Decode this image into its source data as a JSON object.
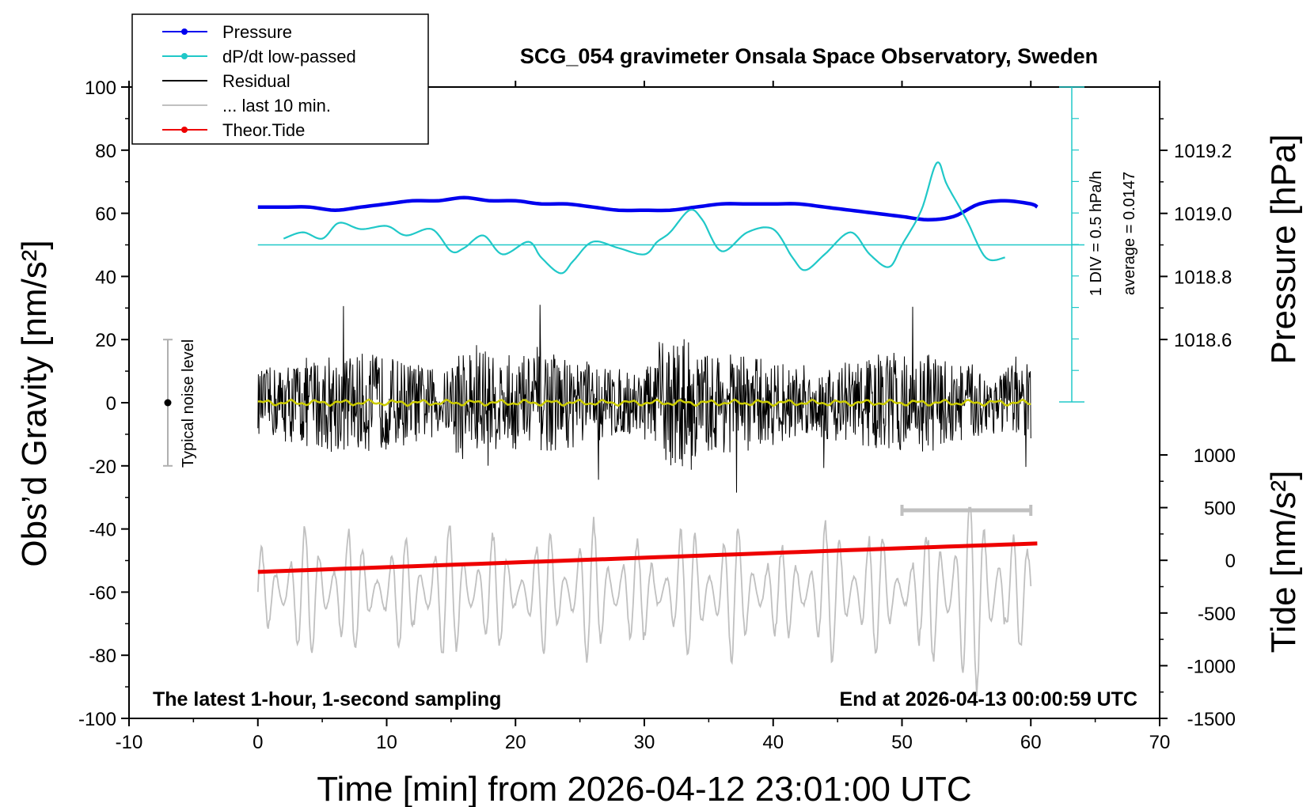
{
  "chart_data": {
    "type": "line",
    "title": "SCG_054 gravimeter Onsala Space Observatory, Sweden",
    "xlabel": "Time [min] from 2026-04-12 23:01:00 UTC",
    "ylabel_left": "Obs’d Gravity [nm/s²]",
    "ylabel_pressure": "Pressure [hPa]",
    "ylabel_tide": "Tide [nm/s²]",
    "footer_left": "The latest 1-hour, 1-second sampling",
    "footer_right": "End at 2026-04-13 00:00:59 UTC",
    "dpdt_scale_label": "1 DIV = 0.5 hPa/h",
    "dpdt_average_label": "average = 0.0147",
    "noise_label": "Typical noise level",
    "xlim": [
      -10,
      70
    ],
    "ylim": [
      -100,
      100
    ],
    "pressure_ylim": [
      1018.4,
      1019.33
    ],
    "tide_ylim": [
      -1500,
      1500
    ],
    "x_ticks": [
      "-10",
      "0",
      "10",
      "20",
      "30",
      "40",
      "50",
      "60",
      "70"
    ],
    "y_ticks": [
      "100",
      "80",
      "60",
      "40",
      "20",
      "0",
      "-20",
      "-40",
      "-60",
      "-80",
      "-100"
    ],
    "pressure_ticks": [
      "1019.2",
      "1019.0",
      "1018.8",
      "1018.6"
    ],
    "tide_ticks": [
      "1000",
      "500",
      "0",
      "-500",
      "-1000",
      "-1500"
    ],
    "legend": {
      "position": "top-left",
      "entries": [
        {
          "label": "Pressure",
          "color": "#0000ee",
          "marker": true
        },
        {
          "label": "dP/dt low-passed",
          "color": "#20c8c8",
          "marker": true
        },
        {
          "label": "Residual",
          "color": "#000000",
          "marker": false
        },
        {
          "label": "... last 10 min.",
          "color": "#c0c0c0",
          "marker": false
        },
        {
          "label": "Theor.Tide",
          "color": "#ee0000",
          "marker": true
        }
      ]
    },
    "series": [
      {
        "name": "Pressure",
        "axis": "pressure",
        "color": "#0000ee",
        "x": [
          0,
          2,
          4,
          6,
          8,
          10,
          12,
          14,
          16,
          18,
          20,
          22,
          24,
          26,
          28,
          30,
          32,
          34,
          36,
          38,
          40,
          42,
          44,
          46,
          48,
          50,
          52,
          54,
          56,
          58,
          60,
          60.5
        ],
        "y": [
          1019.02,
          1019.02,
          1019.02,
          1019.01,
          1019.02,
          1019.03,
          1019.04,
          1019.04,
          1019.05,
          1019.04,
          1019.04,
          1019.03,
          1019.03,
          1019.02,
          1019.01,
          1019.01,
          1019.01,
          1019.02,
          1019.03,
          1019.03,
          1019.03,
          1019.03,
          1019.02,
          1019.01,
          1019.0,
          1018.99,
          1018.98,
          1018.99,
          1019.03,
          1019.04,
          1019.03,
          1019.02
        ]
      },
      {
        "name": "dP/dt low-passed",
        "axis": "pressure",
        "color": "#20c8c8",
        "x": [
          2,
          3.5,
          5,
          6.3,
          8,
          10,
          11.5,
          13.5,
          15,
          16,
          17.5,
          19,
          21,
          22,
          23.5,
          24.5,
          26,
          28,
          30,
          31,
          32,
          33.5,
          34.5,
          36,
          38,
          40,
          41.5,
          42.5,
          44,
          46,
          47.5,
          49,
          50,
          51.5,
          52.7,
          53.5,
          55,
          56.5,
          58
        ],
        "y": [
          1018.92,
          1018.94,
          1018.92,
          1018.97,
          1018.95,
          1018.96,
          1018.93,
          1018.95,
          1018.88,
          1018.89,
          1018.93,
          1018.87,
          1018.91,
          1018.86,
          1018.81,
          1018.85,
          1018.91,
          1018.89,
          1018.87,
          1018.91,
          1018.94,
          1019.01,
          1018.98,
          1018.88,
          1018.94,
          1018.95,
          1018.86,
          1018.82,
          1018.87,
          1018.94,
          1018.87,
          1018.83,
          1018.9,
          1019.01,
          1019.16,
          1019.09,
          1018.98,
          1018.86,
          1018.86
        ]
      },
      {
        "name": "Theor.Tide",
        "axis": "tide",
        "color": "#ee0000",
        "x": [
          0,
          10,
          20,
          30,
          40,
          50,
          60.5
        ],
        "y": [
          -110,
          -65,
          -20,
          25,
          70,
          115,
          160
        ]
      }
    ],
    "residual_range": [
      -37,
      33
    ],
    "last10_range": [
      -1350,
      500
    ],
    "dpdt_baseline": 1018.9,
    "last10_bar_x": [
      50,
      60
    ]
  }
}
